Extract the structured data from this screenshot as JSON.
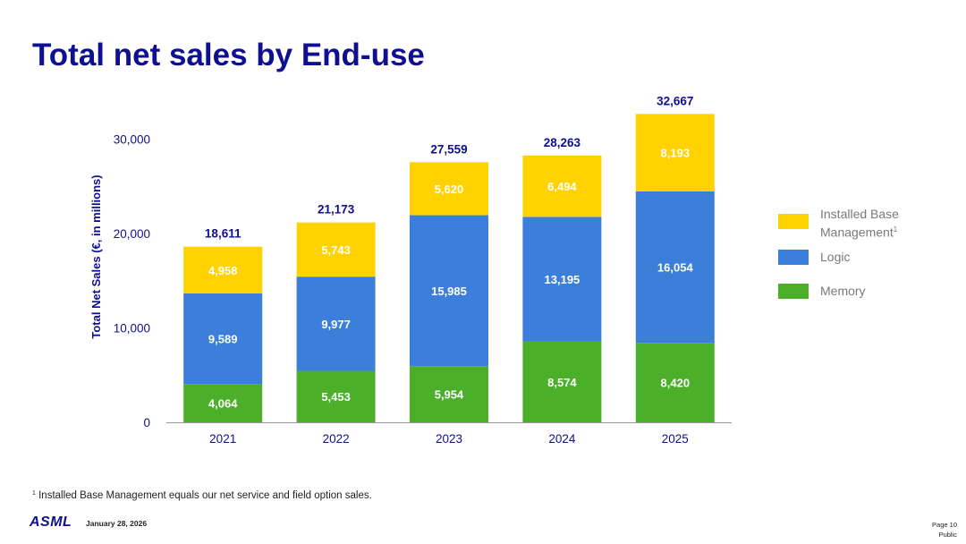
{
  "slide": {
    "title": "Total net sales by End-use",
    "footnote_marker": "1",
    "footnote_text": "Installed Base Management equals our net service and field option sales.",
    "logo_text": "ASML",
    "date": "January 28, 2026",
    "page": "Page 10",
    "classification": "Public"
  },
  "legend": {
    "items": [
      {
        "label_line1": "Installed Base",
        "label_line2": "Management",
        "superscript": "1",
        "color": "#ffd200"
      },
      {
        "label_line1": "Logic",
        "color": "#3b7fdb"
      },
      {
        "label_line1": "Memory",
        "color": "#4caf2a"
      }
    ]
  },
  "chart_data": {
    "type": "bar",
    "stacked": true,
    "categories": [
      "2021",
      "2022",
      "2023",
      "2024",
      "2025"
    ],
    "series": [
      {
        "name": "Memory",
        "color": "#4caf2a",
        "values": [
          4064,
          5453,
          5954,
          8574,
          8420
        ],
        "labels": [
          "4,064",
          "5,453",
          "5,954",
          "8,574",
          "8,420"
        ]
      },
      {
        "name": "Logic",
        "color": "#3b7fdb",
        "values": [
          9589,
          9977,
          15985,
          13195,
          16054
        ],
        "labels": [
          "9,589",
          "9,977",
          "15,985",
          "13,195",
          "16,054"
        ]
      },
      {
        "name": "Installed Base Management",
        "color": "#ffd200",
        "values": [
          4958,
          5743,
          5620,
          6494,
          8193
        ],
        "labels": [
          "4,958",
          "5,743",
          "5,620",
          "6,494",
          "8,193"
        ]
      }
    ],
    "totals": [
      18611,
      21173,
      27559,
      28263,
      32667
    ],
    "total_labels": [
      "18,611",
      "21,173",
      "27,559",
      "28,263",
      "32,667"
    ],
    "ylabel": "Total Net Sales (€, in millions)",
    "xlabel": "",
    "ylim": [
      0,
      32667
    ],
    "yticks": [
      0,
      10000,
      20000,
      30000
    ],
    "ytick_labels": [
      "0",
      "10,000",
      "20,000",
      "30,000"
    ],
    "grid": false,
    "legend_position": "right",
    "axis_color": "#0f0f91",
    "value_label_color": "#ffffff"
  }
}
